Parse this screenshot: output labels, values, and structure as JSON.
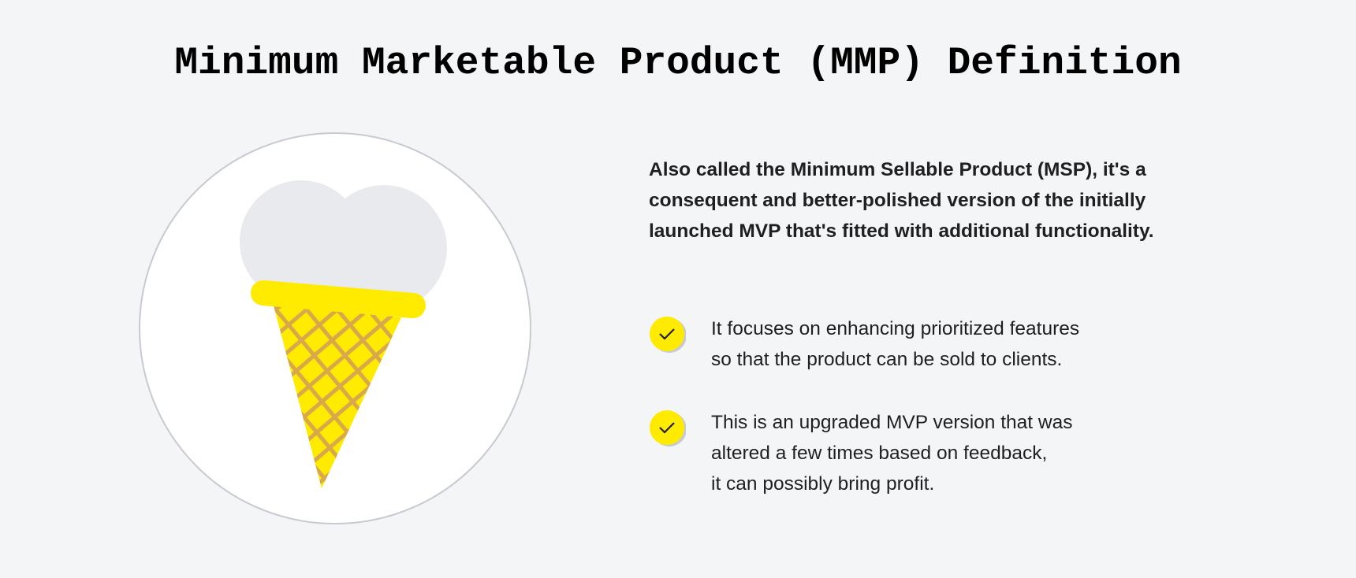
{
  "title": "Minimum Marketable Product (MMP) Definition",
  "illustration": {
    "icon": "ice-cream-cone-icon",
    "colors": {
      "scoop": "#e9eaee",
      "cone": "#ffeb00",
      "waffle": "#d9a84a",
      "circle_border": "#c8cad2"
    }
  },
  "intro": "Also called the Minimum Sellable Product (MSP), it's a consequent and better-polished version of the initially launched MVP that's fitted with additional functionality.",
  "bullets": [
    {
      "icon": "check-icon",
      "text": "It focuses on enhancing prioritized features\nso that the product can be sold to clients."
    },
    {
      "icon": "check-icon",
      "text": "This is an upgraded MVP version that was\naltered a few times based on feedback,\nit can possibly bring profit."
    }
  ],
  "accent": "#ffeb00"
}
